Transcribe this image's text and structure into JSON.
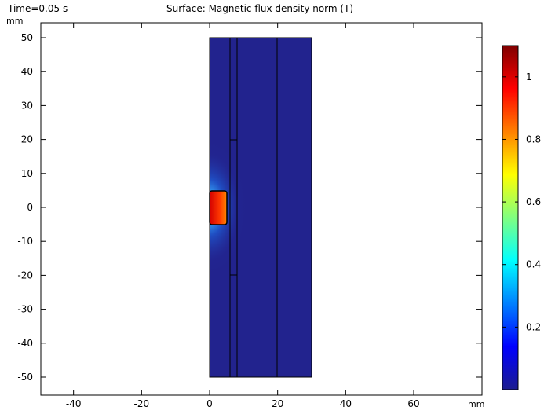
{
  "header": {
    "time_label": "Time=0.05 s",
    "plot_title": "Surface: Magnetic flux density norm (T)"
  },
  "axes": {
    "y_unit": "mm",
    "x_unit": "mm",
    "x_ticks": [
      "-40",
      "-20",
      "0",
      "20",
      "40",
      "60"
    ],
    "y_ticks": [
      "50",
      "40",
      "30",
      "20",
      "10",
      "0",
      "-10",
      "-20",
      "-30",
      "-40",
      "-50"
    ]
  },
  "colorbar": {
    "ticks": [
      "1",
      "0.8",
      "0.6",
      "0.4",
      "0.2"
    ],
    "colors": [
      "#7f0000",
      "#ff0000",
      "#ff8000",
      "#ffff00",
      "#80ff80",
      "#00ffff",
      "#0080ff",
      "#0000ff",
      "#1c1c8f"
    ]
  },
  "chart_data": {
    "type": "heatmap",
    "title": "Surface: Magnetic flux density norm (T)",
    "time": "Time=0.05 s",
    "xlabel": "mm",
    "ylabel": "mm",
    "xlim": [
      -50,
      80
    ],
    "ylim": [
      -53,
      53
    ],
    "colorbar_range": [
      0,
      1.1
    ],
    "geometry_domains_mm": [
      {
        "name": "outer",
        "x": [
          0,
          30
        ],
        "y": [
          -50,
          50
        ]
      },
      {
        "name": "coil",
        "x": [
          0,
          5
        ],
        "y": [
          -5,
          5
        ],
        "approx_B_T": 1.05
      },
      {
        "name": "line",
        "x": [
          6,
          6
        ],
        "y": [
          -50,
          50
        ]
      },
      {
        "name": "line",
        "x": [
          8,
          8
        ],
        "y": [
          -50,
          50
        ]
      },
      {
        "name": "line",
        "x": [
          20,
          20
        ],
        "y": [
          -50,
          50
        ]
      }
    ]
  }
}
